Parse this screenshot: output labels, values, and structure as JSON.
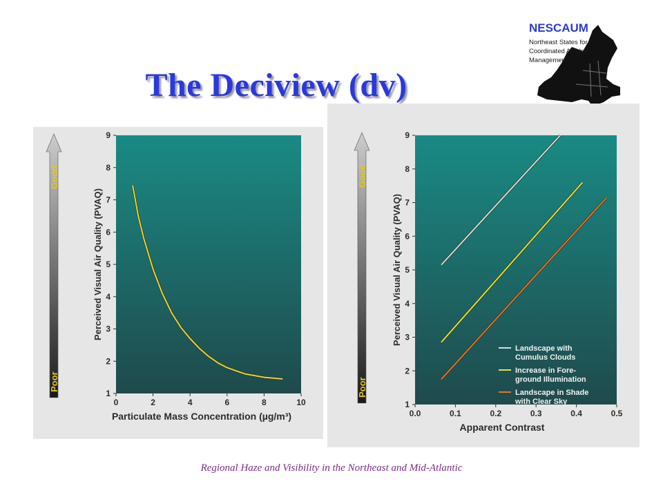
{
  "slide": {
    "title": "The Deciview (dv)",
    "footer": "Regional Haze and Visibility in the Northeast and Mid-Atlantic"
  },
  "logo": {
    "name": "NESCAUM",
    "lines": [
      "Northeast States for",
      "Coordinated Air Use",
      "Management"
    ]
  },
  "colors": {
    "title": "#2a3ad8",
    "footer": "#7d2b86",
    "plot_bg_top": "#1a8a84",
    "plot_bg_bottom": "#1f4a4c",
    "axis_text": "#2b2b2b",
    "good_label": "#e7c61a"
  },
  "arrow": {
    "good": "Good",
    "poor": "Poor"
  },
  "chart_data": [
    {
      "type": "line",
      "xlabel": "Particulate Mass Concentration (µg/m³)",
      "ylabel": "Perceived Visual Air Quality (PVAQ)",
      "xlim": [
        0,
        10
      ],
      "ylim": [
        1,
        9
      ],
      "xticks": [
        "0",
        "2",
        "4",
        "6",
        "8",
        "10"
      ],
      "yticks": [
        "1",
        "2",
        "3",
        "4",
        "5",
        "6",
        "7",
        "8",
        "9"
      ],
      "series": [
        {
          "color": "#e9d83a",
          "x": [
            0.9,
            1.2,
            1.5,
            2.0,
            2.5,
            3.0,
            3.5,
            4.0,
            4.5,
            5.0,
            5.5,
            6.0,
            6.5,
            7.0,
            8.0,
            9.0
          ],
          "y": [
            7.45,
            6.5,
            5.8,
            4.85,
            4.1,
            3.5,
            3.05,
            2.7,
            2.4,
            2.15,
            1.95,
            1.8,
            1.7,
            1.6,
            1.5,
            1.45
          ]
        }
      ]
    },
    {
      "type": "line",
      "xlabel": "Apparent Contrast",
      "ylabel": "Perceived Visual Air Quality (PVAQ)",
      "xlim": [
        0,
        0.5
      ],
      "ylim": [
        1,
        9
      ],
      "xticks": [
        "0.0",
        "0.1",
        "0.2",
        "0.3",
        "0.4",
        "0.5"
      ],
      "yticks": [
        "1",
        "2",
        "3",
        "4",
        "5",
        "6",
        "7",
        "8",
        "9"
      ],
      "legend_position": "bottom-right",
      "series": [
        {
          "name": "Landscape with Cumulus Clouds",
          "color": "#cfe0e0",
          "x": [
            0.065,
            0.36
          ],
          "y": [
            5.15,
            9.0
          ]
        },
        {
          "name": "Increase in Fore- ground Illumination",
          "color": "#e6e23a",
          "x": [
            0.065,
            0.415
          ],
          "y": [
            2.85,
            7.6
          ]
        },
        {
          "name": "Landscape in Shade with Clear Sky",
          "color": "#e8742a",
          "x": [
            0.065,
            0.475
          ],
          "y": [
            1.75,
            7.15
          ]
        }
      ]
    }
  ]
}
